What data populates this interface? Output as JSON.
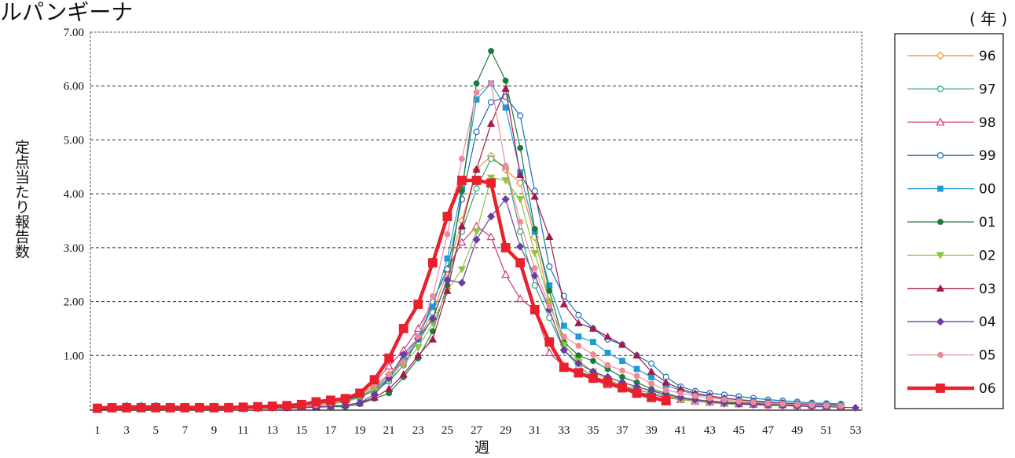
{
  "chart_data": {
    "type": "line",
    "title": "ルパンギーナ",
    "unit_label": "( 年 )",
    "ylabel": "定点当たり報告数",
    "xlabel": "週",
    "x": [
      1,
      2,
      3,
      4,
      5,
      6,
      7,
      8,
      9,
      10,
      11,
      12,
      13,
      14,
      15,
      16,
      17,
      18,
      19,
      20,
      21,
      22,
      23,
      24,
      25,
      26,
      27,
      28,
      29,
      30,
      31,
      32,
      33,
      34,
      35,
      36,
      37,
      38,
      39,
      40,
      41,
      42,
      43,
      44,
      45,
      46,
      47,
      48,
      49,
      50,
      51,
      52,
      53
    ],
    "xlim": [
      1,
      53
    ],
    "xticks": [
      "1",
      "3",
      "5",
      "7",
      "9",
      "11",
      "13",
      "15",
      "17",
      "19",
      "21",
      "23",
      "25",
      "27",
      "29",
      "31",
      "33",
      "35",
      "37",
      "39",
      "41",
      "43",
      "45",
      "47",
      "49",
      "51",
      "53"
    ],
    "ylim": [
      0,
      7
    ],
    "yticks": [
      "1.00",
      "2.00",
      "3.00",
      "4.00",
      "5.00",
      "6.00",
      "7.00"
    ],
    "grid": true,
    "legend_position": "right",
    "series": [
      {
        "name": "96",
        "color": "#f28c28",
        "marker": "diamond-open",
        "values": [
          0.03,
          0.04,
          0.04,
          0.04,
          0.04,
          0.04,
          0.04,
          0.05,
          0.05,
          0.05,
          0.06,
          0.06,
          0.06,
          0.07,
          0.08,
          0.1,
          0.13,
          0.18,
          0.26,
          0.42,
          0.65,
          0.95,
          1.3,
          1.8,
          2.55,
          3.5,
          4.45,
          4.7,
          4.45,
          4.2,
          3.2,
          2.0,
          1.2,
          0.9,
          0.7,
          0.6,
          0.5,
          0.42,
          0.35,
          0.28,
          0.22,
          0.18,
          0.16,
          0.14,
          0.13,
          0.12,
          0.11,
          0.1,
          0.1,
          0.09,
          0.09,
          0.08,
          null
        ]
      },
      {
        "name": "97",
        "color": "#2aa877",
        "marker": "circle-open",
        "values": [
          0.03,
          0.03,
          0.03,
          0.03,
          0.03,
          0.03,
          0.03,
          0.03,
          0.04,
          0.04,
          0.04,
          0.05,
          0.05,
          0.06,
          0.07,
          0.09,
          0.12,
          0.16,
          0.24,
          0.38,
          0.62,
          0.92,
          1.25,
          1.7,
          2.4,
          3.3,
          4.1,
          4.65,
          4.5,
          3.3,
          2.3,
          1.7,
          1.1,
          0.8,
          0.6,
          0.5,
          0.42,
          0.36,
          0.3,
          0.25,
          0.2,
          0.17,
          0.15,
          0.13,
          0.12,
          0.11,
          0.1,
          0.09,
          0.09,
          0.08,
          0.08,
          0.07,
          null
        ]
      },
      {
        "name": "98",
        "color": "#d6337a",
        "marker": "triangle-open",
        "values": [
          0.02,
          0.02,
          0.02,
          0.02,
          0.02,
          0.02,
          0.02,
          0.03,
          0.03,
          0.03,
          0.03,
          0.04,
          0.04,
          0.05,
          0.06,
          0.08,
          0.12,
          0.18,
          0.3,
          0.5,
          0.8,
          1.1,
          1.5,
          2.0,
          2.6,
          3.1,
          3.4,
          3.2,
          2.5,
          2.05,
          1.85,
          1.05,
          0.8,
          0.65,
          0.55,
          0.45,
          0.38,
          0.32,
          0.27,
          0.22,
          0.18,
          0.15,
          0.13,
          0.11,
          0.1,
          0.09,
          0.08,
          0.08,
          0.07,
          0.07,
          0.06,
          0.06,
          null
        ]
      },
      {
        "name": "99",
        "color": "#1a6fb3",
        "marker": "circle-open",
        "values": [
          0.05,
          0.06,
          0.07,
          0.07,
          0.07,
          0.06,
          0.06,
          0.06,
          0.06,
          0.06,
          0.06,
          0.06,
          0.07,
          0.08,
          0.09,
          0.11,
          0.14,
          0.18,
          0.24,
          0.34,
          0.52,
          0.82,
          1.3,
          2.0,
          2.6,
          3.9,
          5.15,
          5.7,
          5.8,
          5.45,
          4.05,
          2.65,
          2.1,
          1.75,
          1.5,
          1.3,
          1.2,
          1.0,
          0.85,
          0.6,
          0.42,
          0.34,
          0.3,
          0.27,
          0.24,
          0.21,
          0.18,
          0.16,
          0.14,
          0.12,
          0.11,
          0.1,
          null
        ]
      },
      {
        "name": "00",
        "color": "#1e9ad6",
        "marker": "square",
        "values": [
          0.03,
          0.03,
          0.03,
          0.03,
          0.03,
          0.03,
          0.03,
          0.03,
          0.03,
          0.03,
          0.03,
          0.04,
          0.04,
          0.05,
          0.06,
          0.08,
          0.1,
          0.14,
          0.22,
          0.36,
          0.58,
          0.9,
          1.35,
          1.9,
          2.8,
          4.1,
          5.75,
          6.05,
          5.6,
          4.4,
          3.3,
          2.3,
          1.55,
          1.35,
          1.25,
          1.05,
          0.9,
          0.75,
          0.6,
          0.45,
          0.35,
          0.28,
          0.24,
          0.2,
          0.18,
          0.16,
          0.14,
          0.12,
          0.11,
          0.1,
          0.09,
          0.08,
          null
        ]
      },
      {
        "name": "01",
        "color": "#1e7a3a",
        "marker": "circle",
        "values": [
          0.02,
          0.02,
          0.02,
          0.02,
          0.02,
          0.02,
          0.02,
          0.02,
          0.02,
          0.02,
          0.02,
          0.02,
          0.02,
          0.02,
          0.03,
          0.04,
          0.05,
          0.05,
          0.1,
          0.2,
          0.3,
          0.6,
          0.95,
          1.45,
          2.3,
          4.05,
          6.05,
          6.65,
          6.1,
          4.85,
          3.35,
          2.2,
          1.25,
          1.0,
          0.9,
          0.75,
          0.6,
          0.5,
          0.38,
          0.3,
          0.22,
          0.18,
          0.15,
          0.13,
          0.12,
          0.11,
          0.1,
          0.09,
          0.08,
          0.07,
          0.06,
          0.05,
          null
        ]
      },
      {
        "name": "02",
        "color": "#8cc63f",
        "marker": "triangle-down",
        "values": [
          0.03,
          0.03,
          0.03,
          0.03,
          0.03,
          0.03,
          0.03,
          0.03,
          0.03,
          0.03,
          0.04,
          0.04,
          0.04,
          0.05,
          0.06,
          0.08,
          0.1,
          0.14,
          0.22,
          0.34,
          0.55,
          0.82,
          1.15,
          1.6,
          2.2,
          2.6,
          3.3,
          4.3,
          4.25,
          3.9,
          2.9,
          2.0,
          1.2,
          0.9,
          0.7,
          0.55,
          0.45,
          0.38,
          0.3,
          0.24,
          0.18,
          0.15,
          0.12,
          0.1,
          0.09,
          0.08,
          0.07,
          0.07,
          0.06,
          0.06,
          0.05,
          0.05,
          null
        ]
      },
      {
        "name": "03",
        "color": "#a3194f",
        "marker": "triangle",
        "values": [
          0.02,
          0.02,
          0.02,
          0.02,
          0.02,
          0.02,
          0.02,
          0.02,
          0.02,
          0.02,
          0.02,
          0.02,
          0.03,
          0.03,
          0.04,
          0.05,
          0.06,
          0.08,
          0.12,
          0.22,
          0.38,
          0.65,
          1.0,
          1.3,
          2.2,
          3.4,
          4.45,
          5.3,
          5.95,
          4.35,
          3.95,
          3.2,
          1.95,
          1.6,
          1.5,
          1.35,
          1.2,
          1.0,
          0.7,
          0.5,
          0.38,
          0.3,
          0.25,
          0.21,
          0.18,
          0.15,
          0.13,
          0.12,
          0.1,
          0.09,
          0.08,
          0.07,
          null
        ]
      },
      {
        "name": "04",
        "color": "#6a3ea1",
        "marker": "diamond",
        "values": [
          0.02,
          0.02,
          0.02,
          0.02,
          0.02,
          0.02,
          0.02,
          0.02,
          0.02,
          0.02,
          0.02,
          0.02,
          0.03,
          0.03,
          0.04,
          0.05,
          0.06,
          0.08,
          0.12,
          0.28,
          0.58,
          1.02,
          1.32,
          1.68,
          2.4,
          2.35,
          3.15,
          3.58,
          3.9,
          3.02,
          2.48,
          1.85,
          1.1,
          0.85,
          0.7,
          0.6,
          0.5,
          0.42,
          0.34,
          0.28,
          0.22,
          0.18,
          0.15,
          0.12,
          0.1,
          0.09,
          0.08,
          0.07,
          0.06,
          0.05,
          0.05,
          0.04,
          0.03
        ]
      },
      {
        "name": "05",
        "color": "#ef8a9a",
        "marker": "circle",
        "values": [
          0.03,
          0.03,
          0.03,
          0.03,
          0.03,
          0.03,
          0.03,
          0.03,
          0.03,
          0.03,
          0.03,
          0.04,
          0.04,
          0.05,
          0.06,
          0.08,
          0.12,
          0.18,
          0.28,
          0.45,
          0.65,
          0.88,
          1.35,
          2.1,
          3.25,
          4.65,
          5.88,
          6.05,
          4.52,
          3.48,
          2.62,
          1.92,
          1.35,
          1.18,
          1.02,
          0.82,
          0.72,
          0.62,
          0.48,
          0.36,
          0.3,
          0.25,
          0.21,
          0.18,
          0.15,
          0.13,
          0.11,
          0.1,
          0.09,
          0.08,
          0.07,
          0.06,
          null
        ]
      },
      {
        "name": "06",
        "color": "#e8212d",
        "marker": "square",
        "values": [
          0.02,
          0.03,
          0.03,
          0.03,
          0.03,
          0.03,
          0.03,
          0.03,
          0.03,
          0.03,
          0.04,
          0.05,
          0.06,
          0.07,
          0.09,
          0.14,
          0.17,
          0.2,
          0.3,
          0.55,
          0.95,
          1.5,
          1.95,
          2.72,
          3.58,
          4.25,
          4.25,
          4.2,
          3.0,
          2.72,
          1.85,
          1.25,
          0.78,
          0.68,
          0.58,
          0.5,
          0.4,
          0.3,
          0.22,
          0.16,
          null,
          null,
          null,
          null,
          null,
          null,
          null,
          null,
          null,
          null,
          null,
          null,
          null
        ]
      }
    ]
  }
}
